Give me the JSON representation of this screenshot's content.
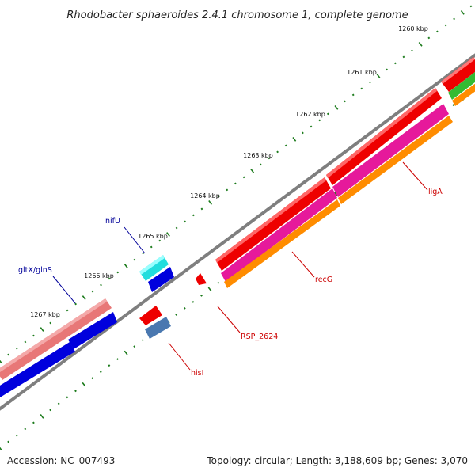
{
  "title": "Rhodobacter sphaeroides 2.4.1 chromosome 1, complete genome",
  "footer": {
    "accession": "Accession: NC_007493",
    "summary": "Topology: circular; Length: 3,188,609 bp; Genes: 3,070"
  },
  "scale": [
    {
      "label": "1260 kbp",
      "pos": 1260
    },
    {
      "label": "1261 kbp",
      "pos": 1261
    },
    {
      "label": "1262 kbp",
      "pos": 1262
    },
    {
      "label": "1263 kbp",
      "pos": 1263
    },
    {
      "label": "1264 kbp",
      "pos": 1264
    },
    {
      "label": "1265 kbp",
      "pos": 1265
    },
    {
      "label": "1266 kbp",
      "pos": 1266
    },
    {
      "label": "1267 kbp",
      "pos": 1267
    }
  ],
  "gene_labels": [
    {
      "text": "ligA",
      "color": "#cc0000"
    },
    {
      "text": "recG",
      "color": "#cc0000"
    },
    {
      "text": "RSP_2624",
      "color": "#cc0000"
    },
    {
      "text": "hisI",
      "color": "#cc0000"
    },
    {
      "text": "nifU",
      "color": "#000099"
    },
    {
      "text": "gltX/glnS",
      "color": "#000099"
    }
  ],
  "colors": {
    "backbone": "#7f7f7f",
    "cds_red": "#ee0000",
    "cds_pink": "#e6199b",
    "cds_orange": "#ff8c00",
    "cds_green": "#33bb33",
    "cds_cyan": "#22dddd",
    "cds_blue": "#0000dd",
    "cds_salmon": "#e87777",
    "cds_steel": "#4a78b0",
    "tick_green": "#1a7a1a"
  }
}
